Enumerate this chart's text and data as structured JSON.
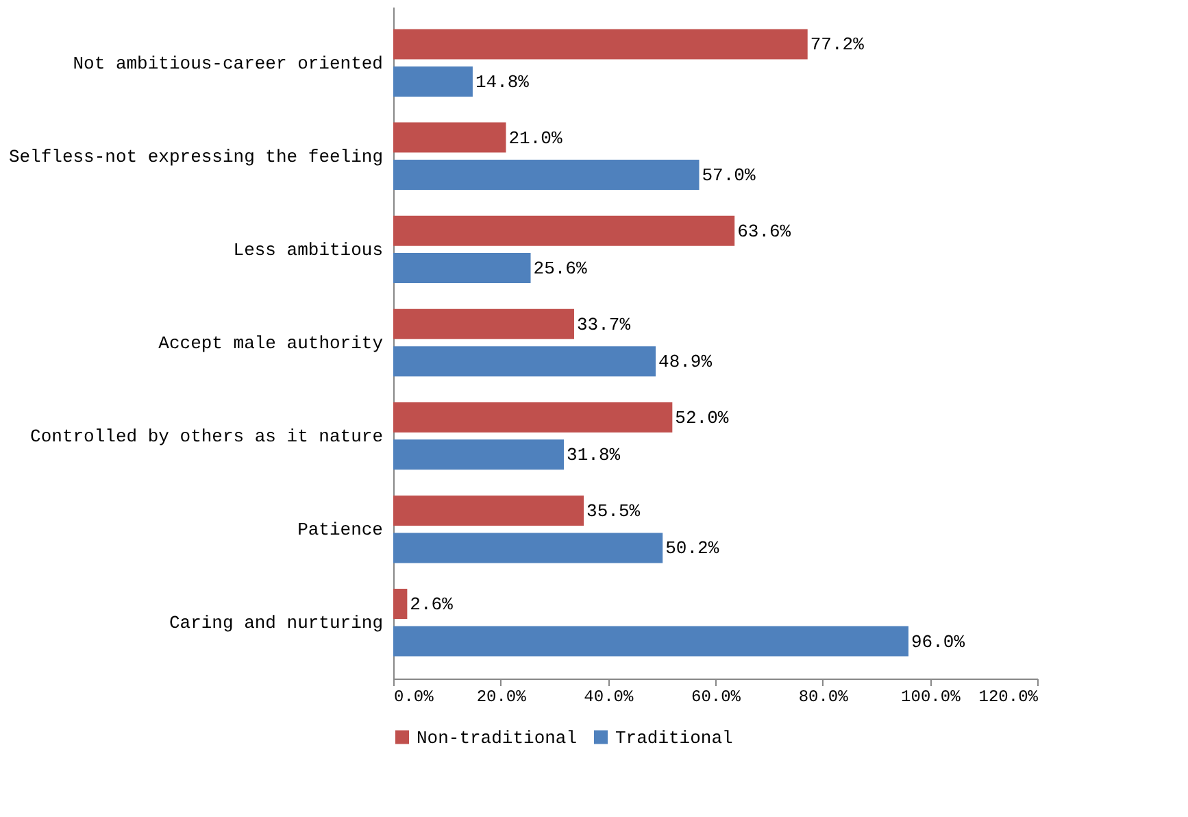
{
  "chart_data": {
    "type": "bar",
    "orientation": "horizontal",
    "categories": [
      "Not ambitious-career oriented",
      "Selfless-not expressing the feeling",
      "Less ambitious",
      "Accept male authority",
      "Controlled by others as it nature",
      "Patience",
      "Caring and nurturing"
    ],
    "series": [
      {
        "name": "Non-traditional",
        "color": "#c0504d",
        "values": [
          77.2,
          21.0,
          63.6,
          33.7,
          52.0,
          35.5,
          2.6
        ],
        "value_labels": [
          "77.2%",
          "21.0%",
          "63.6%",
          "33.7%",
          "52.0%",
          "35.5%",
          "2.6%"
        ]
      },
      {
        "name": "Traditional",
        "color": "#4f81bd",
        "values": [
          14.8,
          57.0,
          25.6,
          48.9,
          31.8,
          50.2,
          96.0
        ],
        "value_labels": [
          "14.8%",
          "57.0%",
          "25.6%",
          "48.9%",
          "31.8%",
          "50.2%",
          "96.0%"
        ]
      }
    ],
    "xlim": [
      0,
      120
    ],
    "xticks": [
      {
        "value": 0,
        "label": "0.0%"
      },
      {
        "value": 20,
        "label": "20.0%"
      },
      {
        "value": 40,
        "label": "40.0%"
      },
      {
        "value": 60,
        "label": "60.0%"
      },
      {
        "value": 80,
        "label": "80.0%"
      },
      {
        "value": 100,
        "label": "100.0%"
      },
      {
        "value": 120,
        "label": "120.0%"
      }
    ],
    "grid": false,
    "legend": "bottom"
  }
}
